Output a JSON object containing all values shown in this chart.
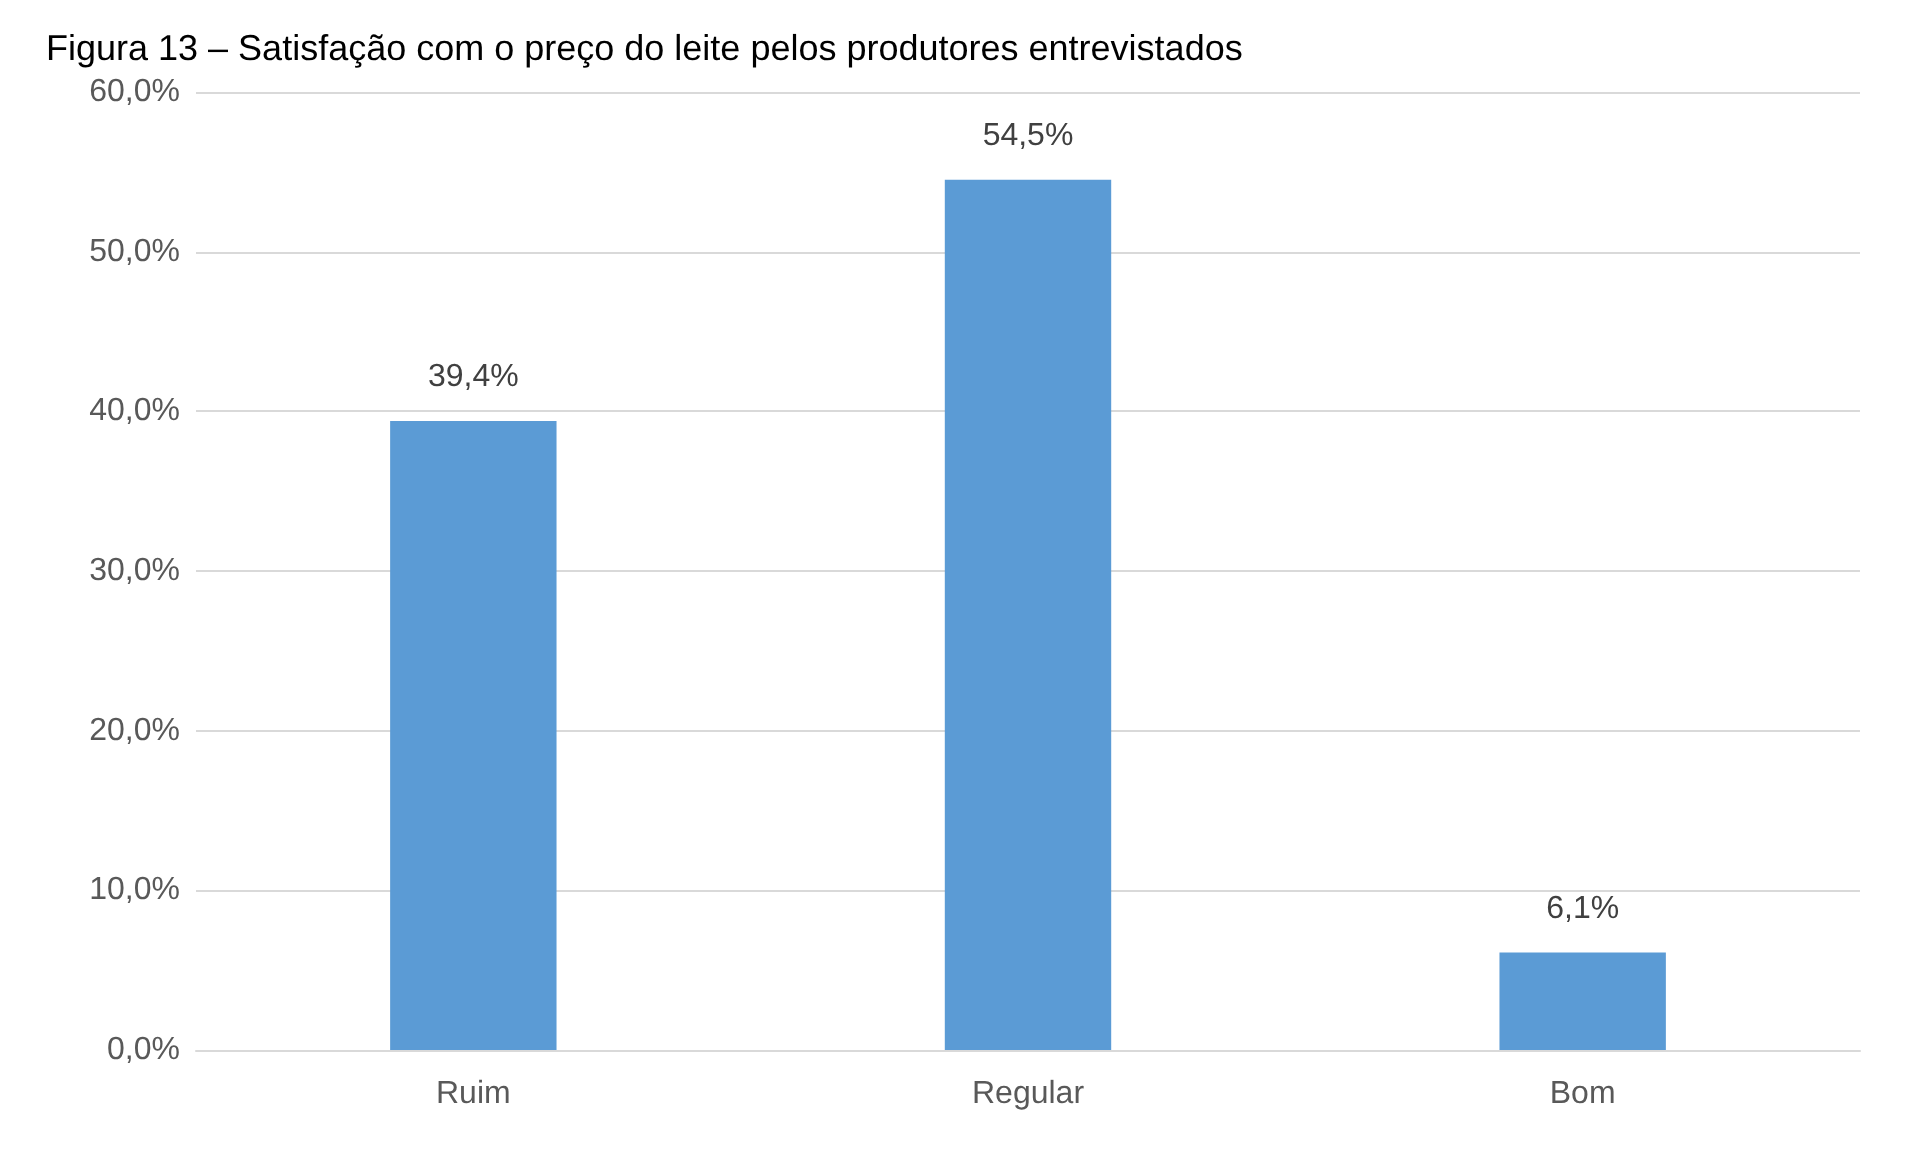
{
  "chart_data": {
    "type": "bar",
    "title": "Figura 13 – Satisfação com o preço do leite pelos produtores entrevistados",
    "categories": [
      "Ruim",
      "Regular",
      "Bom"
    ],
    "values": [
      39.4,
      54.5,
      6.1
    ],
    "value_labels": [
      "39,4%",
      "54,5%",
      "6,1%"
    ],
    "color": "#5b9bd5",
    "ylim": [
      0,
      60
    ],
    "yticks": [
      {
        "value": 0,
        "label": "0,0%"
      },
      {
        "value": 10,
        "label": "10,0%"
      },
      {
        "value": 20,
        "label": "20,0%"
      },
      {
        "value": 30,
        "label": "30,0%"
      },
      {
        "value": 40,
        "label": "40,0%"
      },
      {
        "value": 50,
        "label": "50,0%"
      },
      {
        "value": 60,
        "label": "60,0%"
      }
    ],
    "grid": "y"
  }
}
